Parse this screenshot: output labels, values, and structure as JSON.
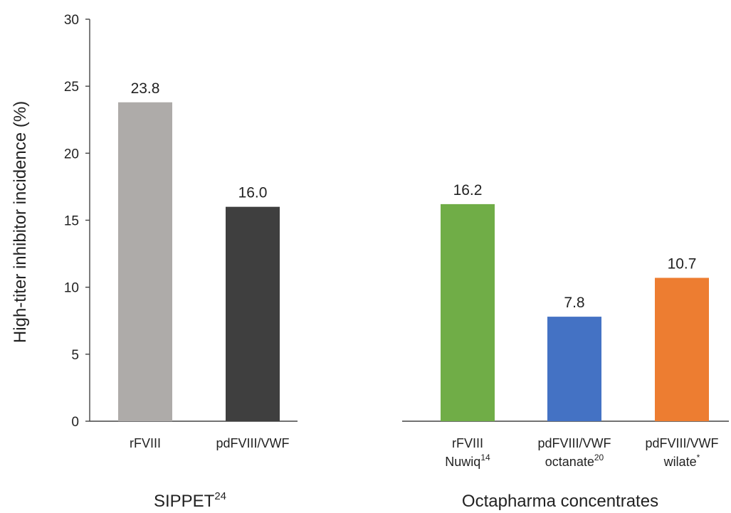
{
  "chart_data": {
    "type": "bar",
    "ylabel": "High-titer inhibitor incidence (%)",
    "ylim": [
      0,
      30
    ],
    "yticks": [
      0,
      5,
      10,
      15,
      20,
      25,
      30
    ],
    "grid": false,
    "groups": [
      {
        "label": "SIPPET",
        "label_ref": "24",
        "bars": [
          {
            "line1": "rFVIII",
            "line2": "",
            "ref": "",
            "value": 23.8,
            "value_label": "23.8",
            "color": "#aeaba9"
          },
          {
            "line1": "pdFVIII/VWF",
            "line2": "",
            "ref": "",
            "value": 16.0,
            "value_label": "16.0",
            "color": "#3f3f3f"
          }
        ]
      },
      {
        "label": "Octapharma concentrates",
        "label_ref": "",
        "bars": [
          {
            "line1": "rFVIII",
            "line2": "Nuwiq",
            "ref": "14",
            "value": 16.2,
            "value_label": "16.2",
            "color": "#70ad47"
          },
          {
            "line1": "pdFVIII/VWF",
            "line2": "octanate",
            "ref": "20",
            "value": 7.8,
            "value_label": "7.8",
            "color": "#4472c4"
          },
          {
            "line1": "pdFVIII/VWF",
            "line2": "wilate",
            "ref": "*",
            "value": 10.7,
            "value_label": "10.7",
            "color": "#ed7d31"
          }
        ]
      }
    ]
  }
}
